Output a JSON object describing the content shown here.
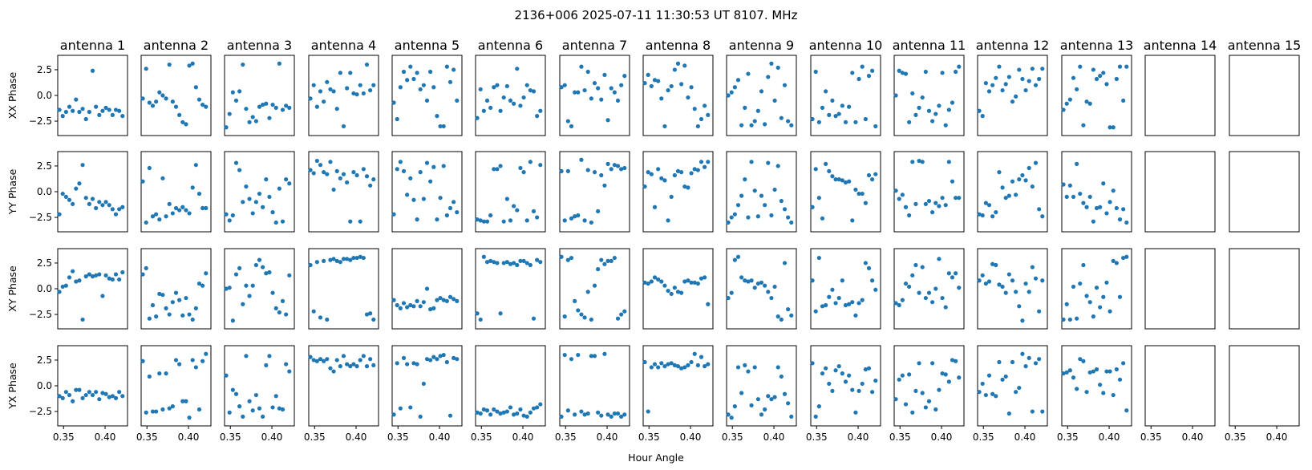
{
  "chart_data": {
    "type": "scatter",
    "suptitle": "2136+006  2025-07-11 11:30:53 UT  8107. MHz",
    "xlabel": "Hour Angle",
    "color": "#1f77b4",
    "x_ticks": [
      0.35,
      0.4
    ],
    "x_tick_labels": [
      "0.35",
      "0.40"
    ],
    "y_ticks": [
      2.5,
      0.0,
      -2.5
    ],
    "y_tick_labels": [
      "2.5",
      "0.0",
      "−2.5"
    ],
    "xlim": [
      0.343,
      0.427
    ],
    "ylim": [
      -3.9,
      3.9
    ],
    "x": [
      0.345,
      0.349,
      0.353,
      0.357,
      0.361,
      0.365,
      0.369,
      0.373,
      0.377,
      0.381,
      0.385,
      0.389,
      0.393,
      0.397,
      0.401,
      0.405,
      0.409,
      0.413,
      0.417,
      0.421
    ],
    "rows": [
      "XX Phase",
      "YY Phase",
      "XY Phase",
      "YX Phase"
    ],
    "antennas": [
      "antenna 1",
      "antenna 2",
      "antenna 3",
      "antenna 4",
      "antenna 5",
      "antenna 6",
      "antenna 7",
      "antenna 8",
      "antenna 9",
      "antenna 10",
      "antenna 11",
      "antenna 12",
      "antenna 13",
      "antenna 14",
      "antenna 15"
    ],
    "panels": [
      [
        [
          -1.4,
          -2.0,
          -1.6,
          -1.1,
          -1.5,
          -0.4,
          -1.6,
          -1.3,
          -2.3,
          -1.6,
          2.4,
          -1.1,
          -1.9,
          -1.5,
          -1.2,
          -1.4,
          -1.9,
          -1.4,
          -1.5,
          -2.0
        ],
        [
          -0.3,
          2.6,
          -0.7,
          -1.0,
          -0.6,
          0.3,
          0.0,
          -0.3,
          3.0,
          -0.6,
          -1.1,
          -1.9,
          -2.6,
          -2.8,
          2.9,
          3.1,
          0.8,
          -0.4,
          -0.9,
          -1.1
        ],
        [
          -3.1,
          -1.8,
          0.3,
          -0.5,
          0.4,
          3.0,
          -1.3,
          -2.6,
          -2.1,
          -2.5,
          -1.1,
          -0.9,
          -0.8,
          -2.2,
          -0.9,
          -1.2,
          3.1,
          -1.4,
          -1.0,
          -1.2
        ],
        [
          -0.3,
          1.0,
          -1.1,
          0.4,
          -0.6,
          1.3,
          0.6,
          0.4,
          -1.3,
          2.2,
          -3.0,
          0.7,
          2.2,
          0.2,
          0.1,
          1.0,
          0.2,
          3.0,
          0.5,
          1.0
        ],
        [
          -0.7,
          -2.3,
          0.8,
          2.3,
          1.5,
          2.8,
          1.6,
          2.2,
          0.6,
          1.0,
          -0.5,
          2.3,
          0.8,
          -2.0,
          -3.0,
          -3.0,
          2.8,
          1.3,
          2.5,
          -0.5
        ],
        [
          -2.2,
          0.6,
          -1.5,
          -0.5,
          -1.2,
          0.8,
          1.0,
          -1.5,
          -0.2,
          0.9,
          -0.5,
          -0.8,
          2.6,
          -1.0,
          -0.2,
          1.0,
          0.5,
          0.4,
          -2.0,
          -1.5
        ],
        [
          0.8,
          1.0,
          -2.5,
          -3.0,
          0.3,
          0.3,
          2.8,
          0.5,
          2.3,
          -0.3,
          1.2,
          0.7,
          -0.4,
          2.0,
          -2.4,
          0.7,
          0.3,
          -0.5,
          1.0,
          1.9
        ],
        [
          1.2,
          2.0,
          0.9,
          1.5,
          1.4,
          -0.3,
          -3.0,
          0.5,
          0.9,
          2.5,
          3.1,
          1.1,
          2.9,
          -0.2,
          0.8,
          -1.3,
          -3.0,
          -2.3,
          -1.0,
          -1.9
        ],
        [
          0.0,
          0.3,
          0.8,
          1.5,
          -2.9,
          -1.2,
          2.1,
          -2.9,
          -2.5,
          -1.5,
          0.4,
          -2.8,
          1.8,
          3.1,
          -0.5,
          2.7,
          -2.2,
          1.0,
          -2.5,
          -2.9
        ],
        [
          -2.3,
          2.3,
          -2.6,
          -1.2,
          0.4,
          -1.9,
          -0.5,
          -2.0,
          -1.8,
          -1.0,
          -2.6,
          -1.1,
          2.2,
          -2.6,
          1.6,
          2.8,
          -2.3,
          1.9,
          2.4,
          -3.0
        ],
        [
          0.0,
          2.4,
          2.2,
          2.1,
          -2.6,
          0.2,
          -1.9,
          -1.2,
          -0.2,
          2.3,
          -1.5,
          -2.5,
          -1.8,
          -1.0,
          2.2,
          -2.9,
          -1.4,
          -0.7,
          2.3,
          2.8
        ],
        [
          -1.5,
          -2.0,
          1.2,
          0.4,
          1.0,
          1.7,
          2.8,
          0.5,
          1.1,
          1.8,
          -0.6,
          -0.1,
          2.5,
          1.6,
          0.5,
          1.4,
          2.6,
          1.0,
          1.6,
          2.6
        ],
        [
          -1.4,
          -0.8,
          -0.4,
          1.7,
          0.6,
          2.8,
          -2.9,
          -0.6,
          -0.8,
          2.5,
          1.6,
          1.9,
          2.2,
          1.1,
          -3.1,
          -3.1,
          1.6,
          2.8,
          -0.5,
          2.8
        ],
        [],
        []
      ],
      [
        [
          -2.2,
          -0.2,
          -0.5,
          -0.8,
          -1.2,
          0.3,
          0.8,
          2.6,
          -0.6,
          -1.2,
          -0.7,
          -1.6,
          -1.0,
          -1.3,
          -1.0,
          -1.3,
          -1.7,
          -2.2,
          -1.7,
          -1.5
        ],
        [
          1.0,
          -3.0,
          2.3,
          -2.4,
          -2.2,
          -2.7,
          1.3,
          -2.4,
          -1.2,
          -2.1,
          -1.6,
          -1.8,
          -1.5,
          -1.8,
          -2.1,
          0.4,
          2.6,
          -0.2,
          -1.6,
          -1.6
        ],
        [
          -2.2,
          -2.8,
          -2.3,
          2.8,
          2.1,
          -1.0,
          0.5,
          -0.7,
          -2.1,
          -1.0,
          -0.2,
          -1.5,
          1.2,
          -0.5,
          -2.0,
          -3.0,
          0.3,
          -2.9,
          1.2,
          0.8
        ],
        [
          2.1,
          1.8,
          3.0,
          2.6,
          1.9,
          1.7,
          2.9,
          0.2,
          2.0,
          1.3,
          1.7,
          0.9,
          -2.9,
          1.9,
          1.6,
          -2.9,
          2.2,
          1.5,
          0.6,
          1.2
        ],
        [
          -2.2,
          2.2,
          2.9,
          2.0,
          -0.3,
          1.3,
          -0.8,
          -2.7,
          1.9,
          -0.7,
          2.8,
          1.0,
          2.4,
          -2.7,
          -0.6,
          2.5,
          -2.3,
          -1.6,
          -1.0,
          -2.0
        ],
        [
          -2.7,
          -2.8,
          -2.9,
          -2.9,
          -2.3,
          2.2,
          2.2,
          2.5,
          -2.9,
          -0.7,
          -2.8,
          -1.4,
          -1.8,
          2.3,
          1.9,
          -2.8,
          2.9,
          -1.9,
          -2.5,
          2.6
        ],
        [
          2.0,
          -2.8,
          2.0,
          -2.6,
          -2.4,
          -2.3,
          3.1,
          -2.8,
          2.1,
          -3.0,
          1.9,
          -1.9,
          1.6,
          0.6,
          2.7,
          2.2,
          2.6,
          2.5,
          2.2,
          2.3
        ],
        [
          0.5,
          1.9,
          1.7,
          -1.5,
          2.2,
          1.3,
          1.1,
          -2.8,
          -0.5,
          1.6,
          2.0,
          1.9,
          0.5,
          0.4,
          1.8,
          2.2,
          2.1,
          2.9,
          2.4,
          2.9
        ],
        [
          -3.0,
          -2.5,
          -2.2,
          -1.3,
          -0.4,
          1.2,
          -2.5,
          2.9,
          0.1,
          -2.4,
          -0.4,
          -1.3,
          2.8,
          -2.3,
          0.2,
          2.5,
          -0.9,
          -1.7,
          -2.5,
          -3.0
        ],
        [
          -1.5,
          2.2,
          -0.6,
          -2.6,
          2.7,
          2.0,
          1.5,
          1.2,
          1.2,
          1.1,
          0.9,
          1.0,
          -2.8,
          0.2,
          -0.2,
          -0.2,
          -1.1,
          1.6,
          1.2,
          1.7
        ],
        [
          0.1,
          -0.7,
          -0.3,
          -1.5,
          -2.3,
          2.9,
          -1.2,
          3.0,
          2.9,
          -1.2,
          -0.9,
          -2.0,
          -1.1,
          -1.4,
          -0.6,
          -1.3,
          2.9,
          1.0,
          -0.6,
          -0.6
        ],
        [
          -2.2,
          -2.3,
          -1.1,
          -1.3,
          -2.4,
          -2.0,
          1.9,
          0.4,
          -0.6,
          -0.4,
          1.0,
          -0.3,
          1.2,
          1.6,
          1.1,
          2.3,
          0.5,
          2.8,
          -1.7,
          -2.4
        ],
        [
          0.7,
          -0.5,
          0.6,
          -0.5,
          2.7,
          -0.2,
          -1.1,
          -1.5,
          -0.5,
          -2.9,
          -1.6,
          -1.5,
          0.8,
          -2.1,
          -1.0,
          0.1,
          -1.6,
          -2.7,
          -1.7,
          -3.0
        ],
        [],
        []
      ],
      [
        [
          -0.3,
          0.2,
          0.3,
          1.1,
          1.7,
          0.7,
          0.8,
          -3.0,
          1.2,
          1.4,
          1.2,
          1.3,
          1.4,
          -0.7,
          1.3,
          1.0,
          0.9,
          1.4,
          0.9,
          1.6
        ],
        [
          1.4,
          2.0,
          -2.9,
          -1.6,
          -2.7,
          -0.5,
          -0.6,
          -1.9,
          -2.5,
          -1.3,
          -0.4,
          -1.1,
          -2.6,
          -0.9,
          -2.5,
          -3.0,
          -1.9,
          0.5,
          0.3,
          1.5
        ],
        [
          0.0,
          0.1,
          -3.1,
          1.4,
          2.0,
          -1.5,
          0.3,
          -0.7,
          0.3,
          2.3,
          2.8,
          2.1,
          1.5,
          1.6,
          -0.4,
          -1.9,
          -2.3,
          -1.2,
          -2.5,
          1.3
        ],
        [
          2.3,
          -2.2,
          2.6,
          -2.8,
          2.7,
          -3.0,
          2.8,
          2.9,
          2.7,
          2.6,
          2.9,
          2.9,
          2.8,
          3.0,
          3.0,
          3.1,
          3.0,
          -2.5,
          -2.4,
          -3.0
        ],
        [
          -1.1,
          -1.6,
          -1.9,
          -1.4,
          -1.8,
          -1.6,
          -1.7,
          -1.2,
          -1.7,
          -1.3,
          0.0,
          -2.0,
          -1.9,
          -1.1,
          -0.9,
          -1.1,
          -1.2,
          -0.8,
          -1.0,
          -1.2
        ],
        [
          -2.4,
          -3.0,
          3.1,
          2.6,
          2.7,
          2.6,
          2.5,
          -2.4,
          2.5,
          2.6,
          2.4,
          2.5,
          2.3,
          2.7,
          2.7,
          2.5,
          2.3,
          -2.9,
          2.8,
          2.6
        ],
        [
          3.1,
          -2.7,
          2.8,
          3.0,
          -1.2,
          -2.1,
          -2.5,
          -2.8,
          -0.3,
          -3.0,
          0.3,
          1.9,
          2.8,
          2.4,
          2.7,
          2.7,
          3.0,
          -2.9,
          -2.5,
          -2.2
        ],
        [
          0.6,
          0.5,
          0.7,
          1.1,
          0.9,
          0.7,
          0.3,
          -0.2,
          -0.5,
          0.1,
          -0.3,
          -0.4,
          0.7,
          0.8,
          0.6,
          0.6,
          0.5,
          1.0,
          1.1,
          -1.5
        ],
        [
          -0.9,
          -0.4,
          2.8,
          3.1,
          1.1,
          0.8,
          0.7,
          0.8,
          0.1,
          0.5,
          0.6,
          0.3,
          -0.3,
          -0.9,
          0.2,
          -2.7,
          -3.0,
          2.5,
          -2.0,
          -2.6
        ],
        [
          0.8,
          -2.2,
          3.0,
          -1.7,
          -1.6,
          -0.8,
          -0.1,
          -1.4,
          -0.9,
          0.8,
          -1.6,
          -1.5,
          -1.3,
          -2.6,
          -1.4,
          -1.1,
          2.5,
          2.0,
          0.8,
          -0.1
        ],
        [
          -1.4,
          -1.6,
          -1.1,
          0.5,
          0.2,
          1.3,
          2.3,
          -0.4,
          2.1,
          -0.9,
          -0.4,
          -1.3,
          0.0,
          2.9,
          -0.9,
          -1.8,
          1.5,
          1.1,
          1.5,
          0.1
        ],
        [
          0.8,
          1.3,
          0.5,
          0.7,
          2.4,
          2.3,
          0.4,
          0.2,
          -0.4,
          1.4,
          0.8,
          -0.3,
          -1.7,
          -3.1,
          0.5,
          -0.3,
          2.1,
          1.0,
          -2.2,
          0.8
        ],
        [
          -3.0,
          -1.5,
          -3.0,
          0.2,
          -2.9,
          0.5,
          2.3,
          -0.7,
          -1.3,
          -2.7,
          0.1,
          -1.8,
          -0.8,
          0.6,
          -2.2,
          2.7,
          2.5,
          -0.8,
          3.0,
          3.1
        ],
        [],
        []
      ],
      [
        [
          -1.0,
          -1.2,
          -0.6,
          -0.9,
          -1.5,
          -0.4,
          -0.4,
          -1.2,
          -0.9,
          -0.6,
          -0.9,
          -0.6,
          -1.3,
          -0.7,
          -0.8,
          -1.1,
          -1.0,
          -1.2,
          -0.6,
          -1.0
        ],
        [
          2.4,
          -2.6,
          0.9,
          -2.5,
          -2.5,
          1.2,
          -2.3,
          1.2,
          -2.2,
          -2.0,
          2.5,
          2.1,
          -1.5,
          -1.5,
          -3.1,
          2.5,
          1.8,
          -2.3,
          2.4,
          3.1
        ],
        [
          1.0,
          -2.6,
          -0.4,
          -0.8,
          -2.0,
          -3.0,
          2.9,
          -1.5,
          -2.4,
          -0.9,
          -2.2,
          -3.0,
          2.0,
          2.9,
          -2.1,
          -1.0,
          -2.2,
          -2.3,
          2.1,
          1.4
        ],
        [
          2.8,
          2.5,
          2.4,
          2.6,
          2.4,
          2.6,
          1.7,
          1.4,
          2.5,
          1.9,
          2.9,
          2.1,
          1.9,
          2.1,
          1.9,
          2.5,
          2.9,
          1.9,
          2.6,
          2.0
        ],
        [
          -2.8,
          2.2,
          -2.2,
          2.7,
          2.1,
          -2.1,
          2.2,
          2.1,
          -3.0,
          0.2,
          2.6,
          2.5,
          2.8,
          2.6,
          2.9,
          3.0,
          2.3,
          -2.9,
          2.7,
          2.6
        ],
        [
          -2.6,
          -2.7,
          -2.3,
          -2.4,
          -2.8,
          -2.3,
          -2.5,
          -2.7,
          -2.6,
          -2.5,
          -2.1,
          -2.8,
          -2.7,
          -2.3,
          -2.9,
          -3.0,
          -2.6,
          -2.2,
          -2.1,
          -1.8
        ],
        [
          -3.0,
          3.0,
          -2.4,
          2.6,
          -2.8,
          3.0,
          -2.5,
          -2.8,
          -2.7,
          2.9,
          2.9,
          -2.6,
          -2.9,
          3.1,
          -2.8,
          -3.0,
          -2.7,
          -2.7,
          -3.0,
          -2.8
        ],
        [
          2.3,
          -2.5,
          1.8,
          2.1,
          1.8,
          2.2,
          1.9,
          2.1,
          2.2,
          2.0,
          1.9,
          1.7,
          1.8,
          2.0,
          2.3,
          3.1,
          2.0,
          2.8,
          1.9,
          2.1
        ],
        [
          -2.8,
          -3.1,
          -2.0,
          1.8,
          -0.7,
          2.0,
          1.4,
          -1.9,
          1.8,
          -1.3,
          -2.8,
          -2.3,
          -1.0,
          -1.3,
          -1.1,
          1.8,
          0.9,
          -0.8,
          -1.7,
          -3.0
        ],
        [
          2.2,
          -3.0,
          -2.0,
          1.2,
          1.7,
          0.2,
          -0.5,
          1.5,
          1.9,
          1.2,
          0.4,
          1.0,
          -0.4,
          -2.6,
          -0.5,
          0.2,
          1.6,
          1.7,
          -0.6,
          0.5
        ],
        [
          -1.3,
          0.6,
          1.0,
          -1.8,
          1.1,
          -2.6,
          -0.5,
          2.2,
          -0.7,
          -2.1,
          -1.5,
          2.2,
          -2.3,
          -0.4,
          1.2,
          1.1,
          0.4,
          2.5,
          2.4,
          0.8
        ],
        [
          -0.6,
          0.2,
          -0.9,
          1.0,
          -0.8,
          -1.0,
          2.3,
          0.6,
          0.9,
          -2.7,
          2.3,
          -0.6,
          -0.2,
          3.1,
          1.9,
          2.7,
          -2.5,
          2.2,
          2.6,
          -2.5
        ],
        [
          1.2,
          1.3,
          1.5,
          0.8,
          -0.3,
          2.6,
          2.4,
          -0.6,
          1.3,
          1.4,
          1.6,
          0.1,
          -0.7,
          1.4,
          1.4,
          -0.9,
          1.6,
          0.6,
          2.2,
          -2.4
        ],
        [],
        []
      ]
    ]
  }
}
